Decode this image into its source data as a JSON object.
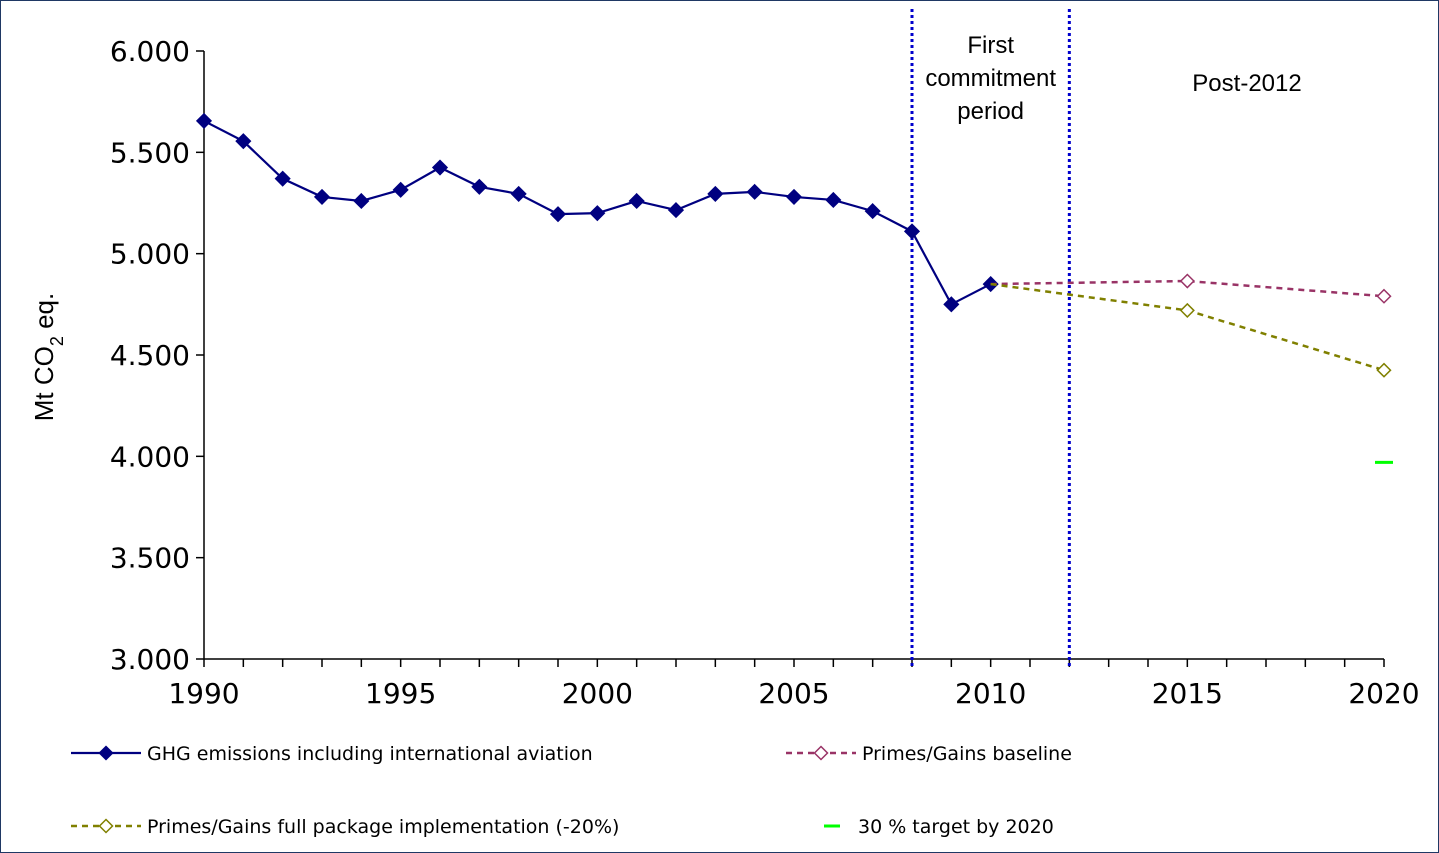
{
  "chart_data": {
    "type": "line",
    "ylabel_main": "Mt CO",
    "ylabel_sub": "2",
    "ylabel_tail": " eq.",
    "xlim": [
      1990,
      2020
    ],
    "ylim": [
      3000,
      6000
    ],
    "yticks": [
      3000,
      3500,
      4000,
      4500,
      5000,
      5500,
      6000
    ],
    "ytick_labels": [
      "3.000",
      "3.500",
      "4.000",
      "4.500",
      "5.000",
      "5.500",
      "6.000"
    ],
    "xticks": [
      1990,
      1995,
      2000,
      2005,
      2010,
      2015,
      2020
    ],
    "xtick_labels": [
      "1990",
      "1995",
      "2000",
      "2005",
      "2010",
      "2015",
      "2020"
    ],
    "grid": false,
    "period_lines": [
      2008,
      2012
    ],
    "annotations": {
      "first_commitment": [
        "First",
        "commitment",
        "period"
      ],
      "post_2012": "Post-2012"
    },
    "series": [
      {
        "name": "GHG emissions including international aviation",
        "color": "#000080",
        "marker": "diamond-filled",
        "line": "solid",
        "x": [
          1990,
          1991,
          1992,
          1993,
          1994,
          1995,
          1996,
          1997,
          1998,
          1999,
          2000,
          2001,
          2002,
          2003,
          2004,
          2005,
          2006,
          2007,
          2008,
          2009,
          2010
        ],
        "y": [
          5655,
          5555,
          5370,
          5280,
          5260,
          5315,
          5425,
          5330,
          5295,
          5195,
          5200,
          5260,
          5215,
          5295,
          5305,
          5280,
          5265,
          5210,
          5110,
          4750,
          4850
        ]
      },
      {
        "name": "Primes/Gains baseline",
        "color": "#993366",
        "marker": "diamond-open",
        "line": "dashed",
        "x": [
          2010,
          2015,
          2020
        ],
        "y": [
          4850,
          4865,
          4790
        ],
        "marked": [
          2015,
          2020
        ]
      },
      {
        "name": "Primes/Gains full package implementation (-20%)",
        "color": "#808000",
        "marker": "diamond-open",
        "line": "dashed",
        "x": [
          2010,
          2015,
          2020
        ],
        "y": [
          4850,
          4720,
          4425
        ],
        "marked": [
          2015,
          2020
        ]
      },
      {
        "name": "30 % target by 2020",
        "color": "#00ff00",
        "marker": "dash",
        "line": "none",
        "x": [
          2020
        ],
        "y": [
          3970
        ]
      }
    ]
  }
}
